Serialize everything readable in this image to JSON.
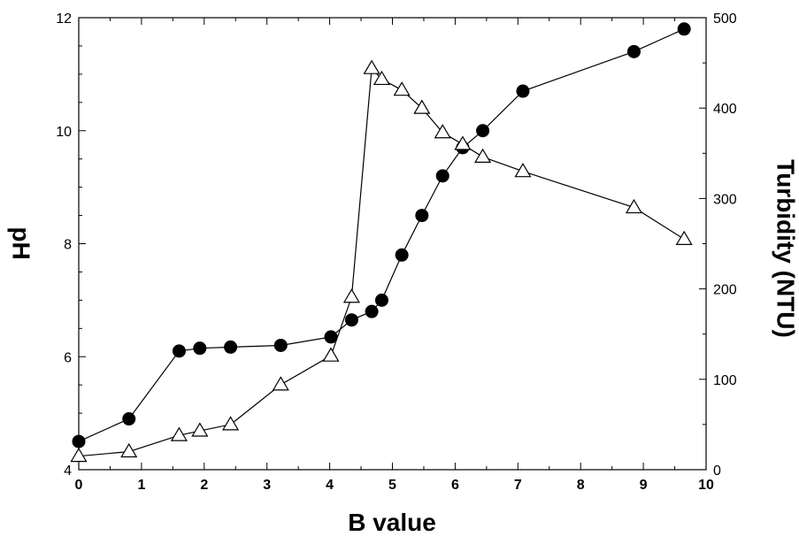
{
  "chart_data": {
    "type": "line",
    "title": "",
    "xlabel": "B value",
    "ylabel": "pH",
    "y2label": "Turbidity (NTU)",
    "xlim": [
      0,
      10
    ],
    "ylim": [
      4,
      12
    ],
    "y2lim": [
      0,
      500
    ],
    "x_ticks": [
      "0",
      "1",
      "2",
      "3",
      "4",
      "5",
      "6",
      "7",
      "8",
      "9",
      "10"
    ],
    "y_ticks": [
      "4",
      "6",
      "8",
      "10",
      "12"
    ],
    "y2_ticks": [
      "0",
      "100",
      "200",
      "300",
      "400",
      "500"
    ],
    "grid": false,
    "legend": "none",
    "series": [
      {
        "axis": "left",
        "marker": "filled-circle",
        "color": "#000000",
        "x": [
          0,
          0.8,
          1.6,
          1.93,
          2.42,
          3.22,
          4.02,
          4.35,
          4.67,
          4.83,
          5.15,
          5.47,
          5.8,
          6.12,
          6.44,
          7.08,
          8.85,
          9.65
        ],
        "y": [
          4.5,
          4.9,
          6.1,
          6.15,
          6.17,
          6.2,
          6.35,
          6.65,
          6.8,
          7.0,
          7.8,
          8.5,
          9.2,
          9.7,
          10.0,
          10.7,
          11.4,
          11.8
        ]
      },
      {
        "axis": "right",
        "marker": "open-triangle",
        "color": "#000000",
        "x": [
          0,
          0.8,
          1.6,
          1.93,
          2.42,
          3.22,
          4.02,
          4.35,
          4.67,
          4.83,
          5.15,
          5.47,
          5.8,
          6.12,
          6.44,
          7.08,
          8.85,
          9.65
        ],
        "y": [
          15,
          20,
          38,
          43,
          50,
          94,
          126,
          191,
          444,
          432,
          420,
          400,
          373,
          360,
          346,
          330,
          290,
          255
        ]
      }
    ]
  }
}
